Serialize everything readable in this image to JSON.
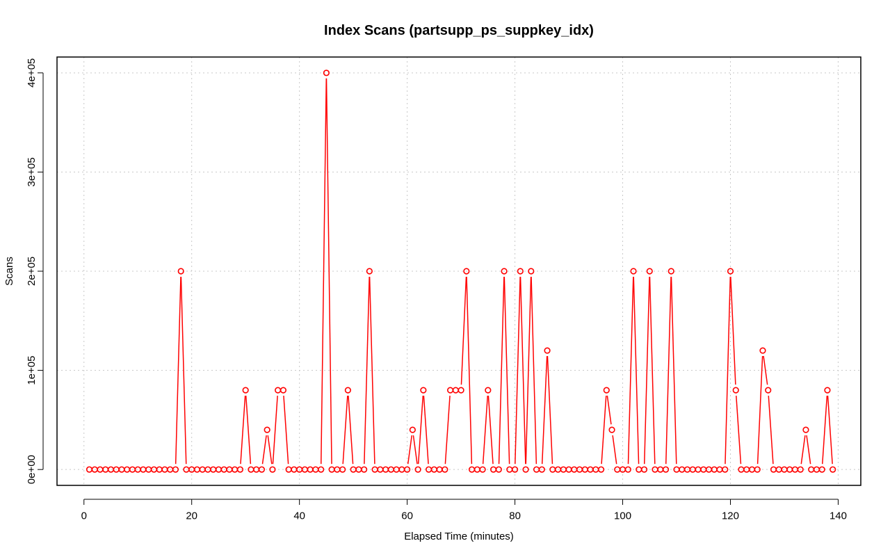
{
  "chart_data": {
    "type": "line",
    "title": "Index Scans (partsupp_ps_suppkey_idx)",
    "xlabel": "Elapsed Time (minutes)",
    "ylabel": "Scans",
    "xlim": [
      -5,
      144.2
    ],
    "ylim": [
      -16000,
      416000
    ],
    "x_ticks": [
      0,
      20,
      40,
      60,
      80,
      100,
      120,
      140
    ],
    "x_tick_labels": [
      "0",
      "20",
      "40",
      "60",
      "80",
      "100",
      "120",
      "140"
    ],
    "y_ticks": [
      0,
      100000,
      200000,
      300000,
      400000
    ],
    "y_tick_labels": [
      "0e+00",
      "1e+05",
      "2e+05",
      "3e+05",
      "4e+05"
    ],
    "grid": true,
    "series": [
      {
        "color": "#ff0000",
        "marker": "open-circle",
        "x": [
          1,
          2,
          3,
          4,
          5,
          6,
          7,
          8,
          9,
          10,
          11,
          12,
          13,
          14,
          15,
          16,
          17,
          18,
          19,
          20,
          21,
          22,
          23,
          24,
          25,
          26,
          27,
          28,
          29,
          30,
          31,
          32,
          33,
          34,
          35,
          36,
          37,
          38,
          39,
          40,
          41,
          42,
          43,
          44,
          45,
          46,
          47,
          48,
          49,
          50,
          51,
          52,
          53,
          54,
          55,
          56,
          57,
          58,
          59,
          60,
          61,
          62,
          63,
          64,
          65,
          66,
          67,
          68,
          69,
          70,
          71,
          72,
          73,
          74,
          75,
          76,
          77,
          78,
          79,
          80,
          81,
          82,
          83,
          84,
          85,
          86,
          87,
          88,
          89,
          90,
          91,
          92,
          93,
          94,
          95,
          96,
          97,
          98,
          99,
          100,
          101,
          102,
          103,
          104,
          105,
          106,
          107,
          108,
          109,
          110,
          111,
          112,
          113,
          114,
          115,
          116,
          117,
          118,
          119,
          120,
          121,
          122,
          123,
          124,
          125,
          126,
          127,
          128,
          129,
          130,
          131,
          132,
          133,
          134,
          135,
          136,
          137,
          138,
          139
        ],
        "y": [
          0,
          0,
          0,
          0,
          0,
          0,
          0,
          0,
          0,
          0,
          0,
          0,
          0,
          0,
          0,
          0,
          0,
          200000,
          0,
          0,
          0,
          0,
          0,
          0,
          0,
          0,
          0,
          0,
          0,
          80000,
          0,
          0,
          0,
          40000,
          0,
          80000,
          80000,
          0,
          0,
          0,
          0,
          0,
          0,
          0,
          400000,
          0,
          0,
          0,
          80000,
          0,
          0,
          0,
          200000,
          0,
          0,
          0,
          0,
          0,
          0,
          0,
          40000,
          0,
          80000,
          0,
          0,
          0,
          0,
          80000,
          80000,
          80000,
          200000,
          0,
          0,
          0,
          80000,
          0,
          0,
          200000,
          0,
          0,
          200000,
          0,
          200000,
          0,
          0,
          120000,
          0,
          0,
          0,
          0,
          0,
          0,
          0,
          0,
          0,
          0,
          80000,
          40000,
          0,
          0,
          0,
          200000,
          0,
          0,
          200000,
          0,
          0,
          0,
          200000,
          0,
          0,
          0,
          0,
          0,
          0,
          0,
          0,
          0,
          0,
          200000,
          80000,
          0,
          0,
          0,
          0,
          120000,
          80000,
          0,
          0,
          0,
          0,
          0,
          0,
          40000,
          0,
          0,
          0,
          80000,
          0
        ]
      }
    ]
  }
}
